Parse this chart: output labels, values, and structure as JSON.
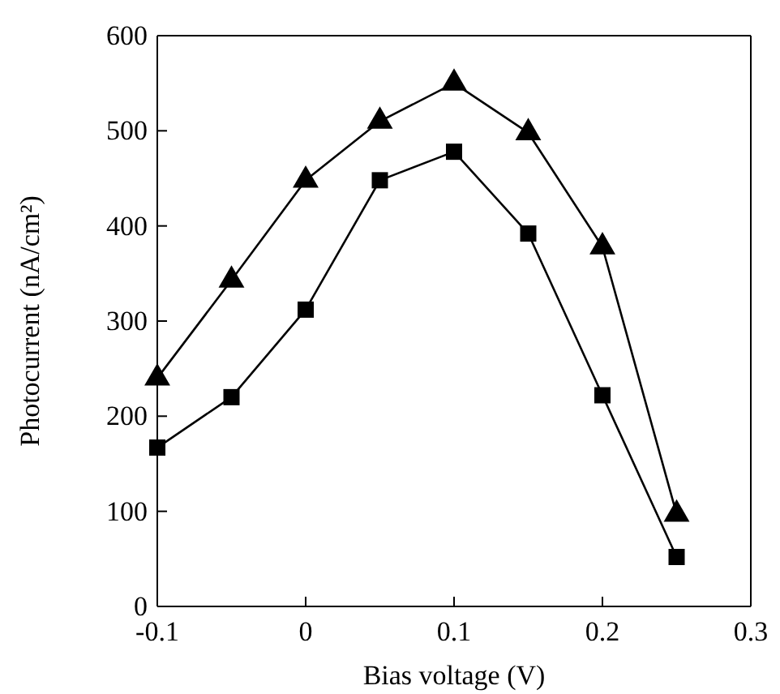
{
  "chart_data": {
    "type": "line",
    "xlabel": "Bias voltage (V)",
    "ylabel": "Photocurrent (nA/cm²)",
    "x": [
      -0.1,
      -0.05,
      0,
      0.05,
      0.1,
      0.15,
      0.2,
      0.25
    ],
    "series": [
      {
        "color": "#000000",
        "marker": "triangle",
        "values": [
          240,
          343,
          448,
          510,
          550,
          498,
          378,
          97
        ]
      },
      {
        "color": "#000000",
        "marker": "square",
        "values": [
          167,
          220,
          312,
          448,
          478,
          392,
          222,
          52
        ]
      }
    ],
    "xlim": [
      -0.1,
      0.3
    ],
    "xticks": [
      {
        "value": -0.1,
        "label": "-0.1"
      },
      0,
      {
        "value": 0.1,
        "label": "0.1"
      },
      {
        "value": 0.2,
        "label": "0.2"
      },
      {
        "value": 0.3,
        "label": "0.3"
      }
    ],
    "ylim": [
      0,
      600
    ],
    "yticks": [
      0,
      100,
      200,
      300,
      400,
      500,
      600
    ],
    "line_style": "solid"
  }
}
